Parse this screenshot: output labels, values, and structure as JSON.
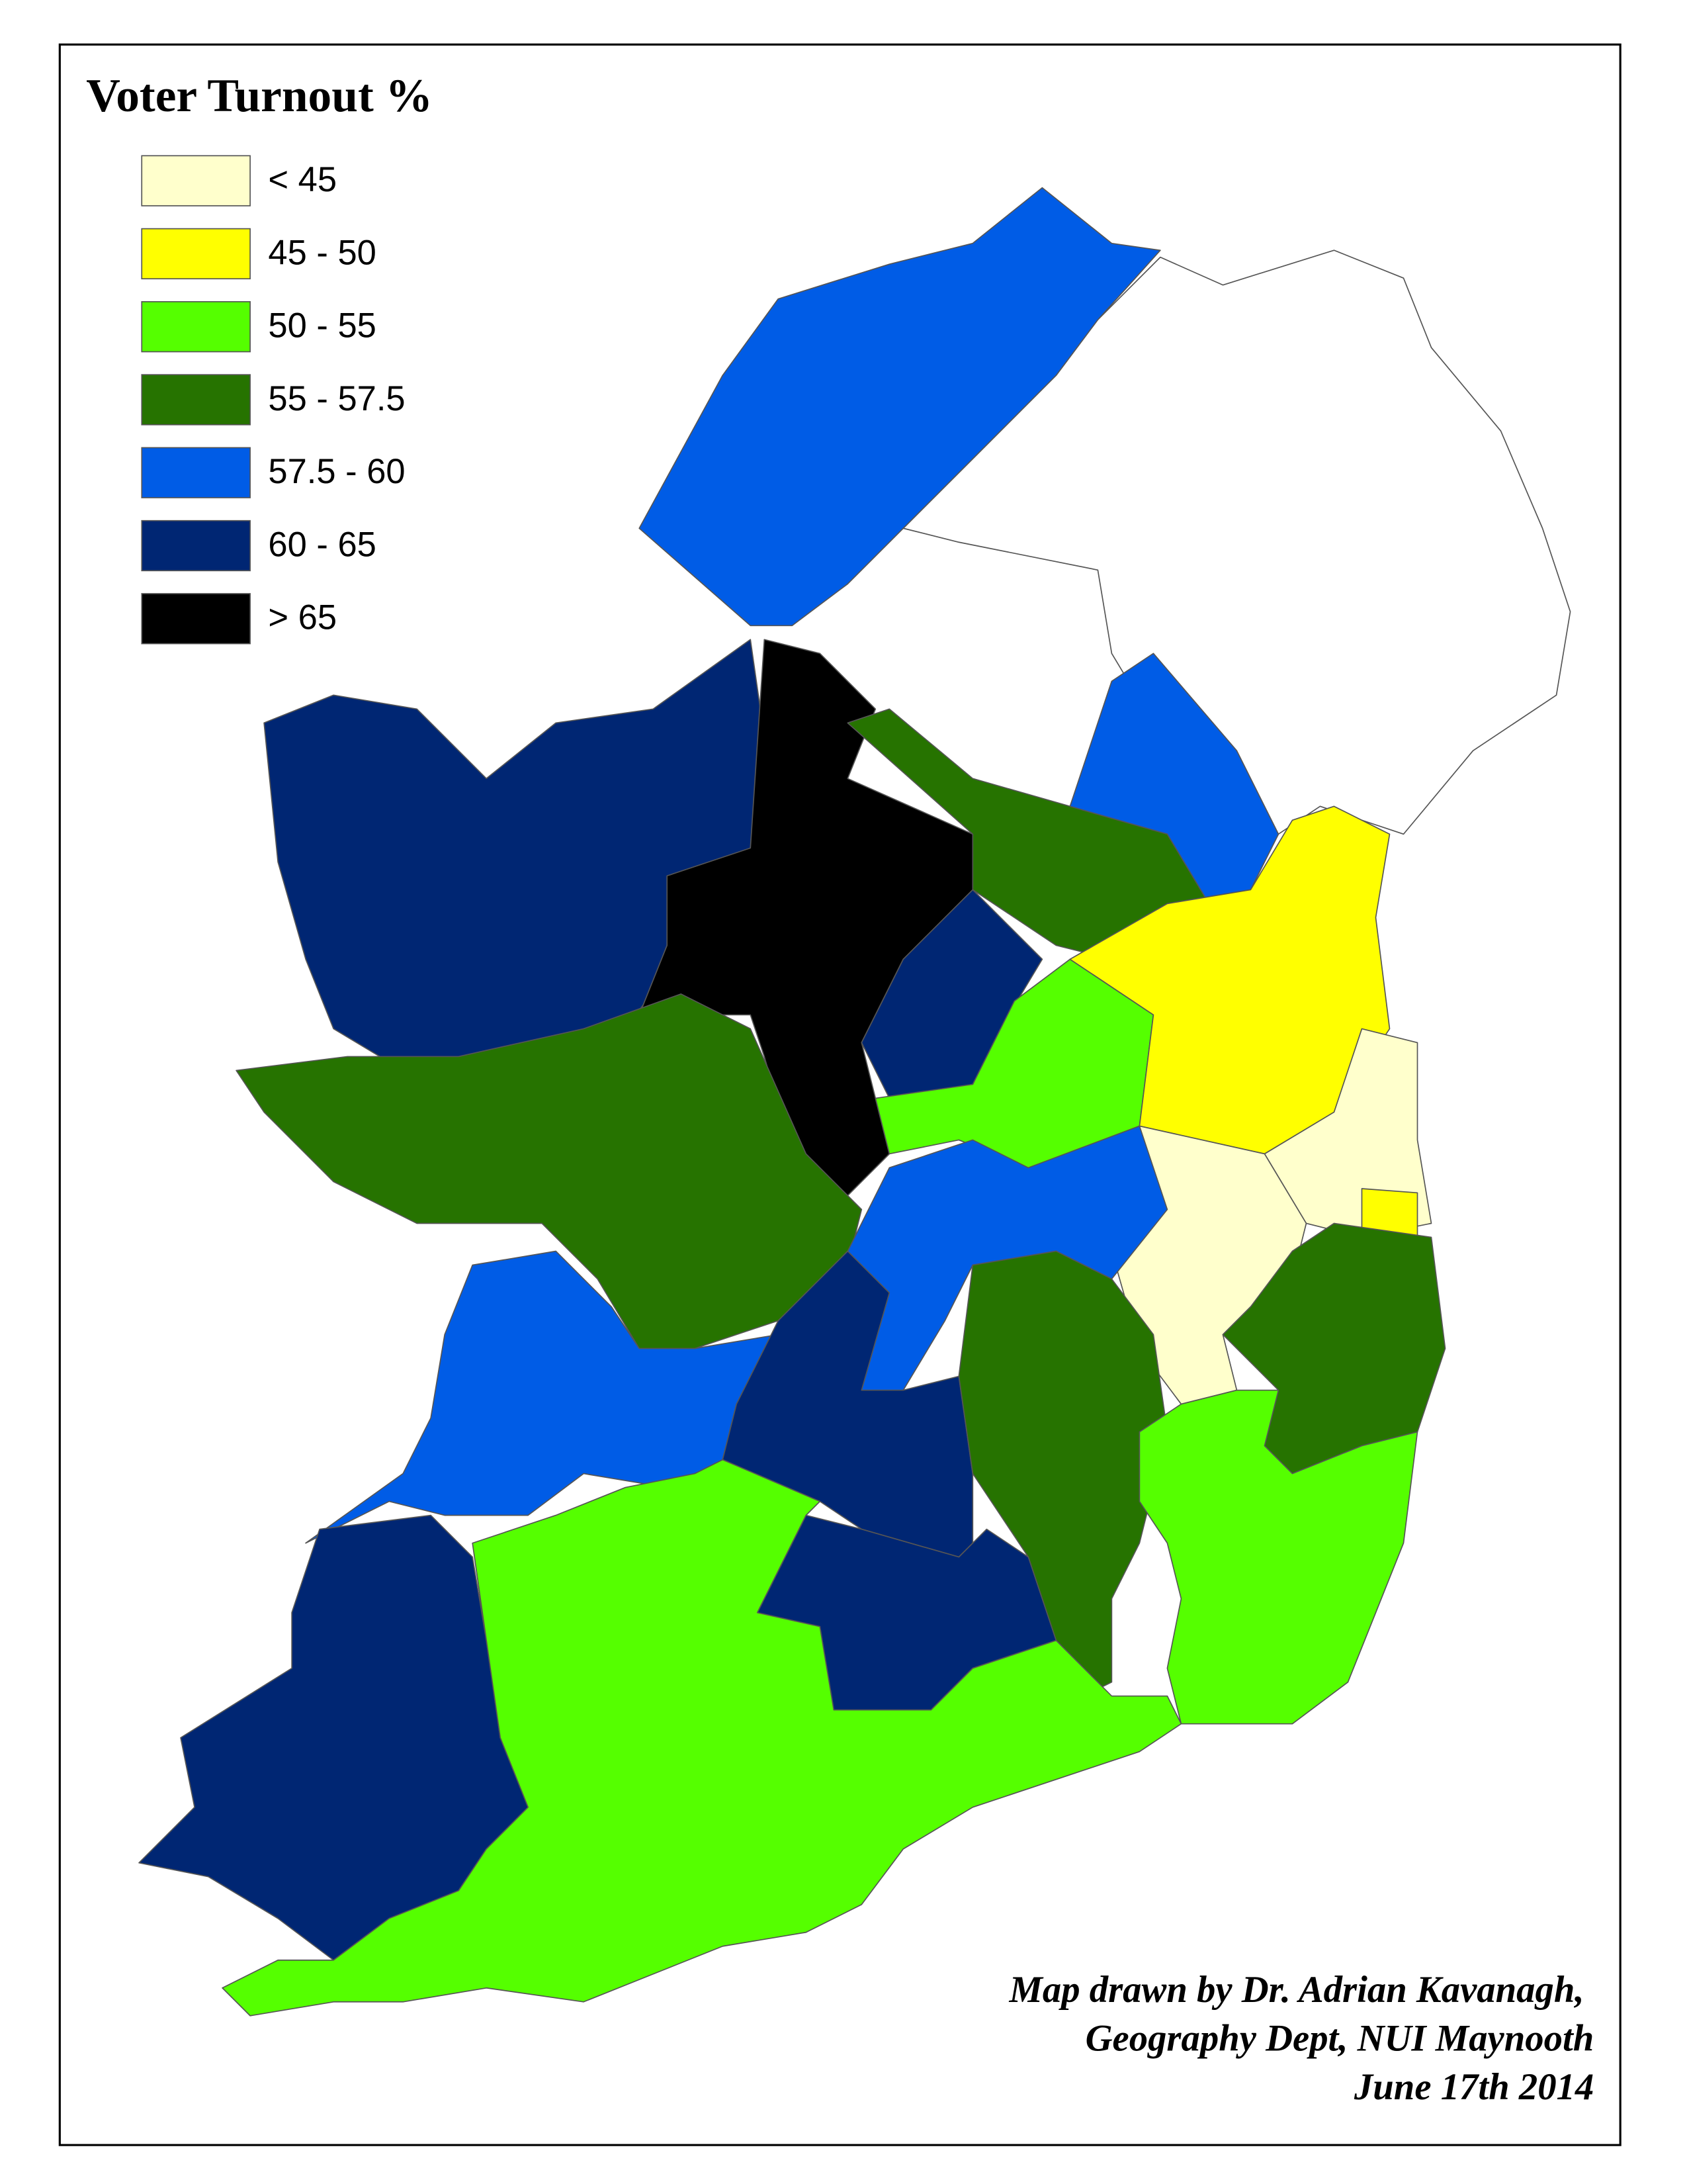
{
  "title": "Voter Turnout %",
  "legend": [
    {
      "label": "< 45",
      "color": "#ffffcc"
    },
    {
      "label": "45 - 50",
      "color": "#ffff00"
    },
    {
      "label": "50 - 55",
      "color": "#55ff00"
    },
    {
      "label": "55 - 57.5",
      "color": "#267300"
    },
    {
      "label": "57.5 - 60",
      "color": "#005ce6"
    },
    {
      "label": "60 - 65",
      "color": "#002673"
    },
    {
      "label": "> 65",
      "color": "#000000"
    }
  ],
  "credit": [
    "Map drawn by Dr. Adrian Kavanagh,",
    "Geography Dept, NUI Maynooth",
    "June 17th 2014"
  ]
}
